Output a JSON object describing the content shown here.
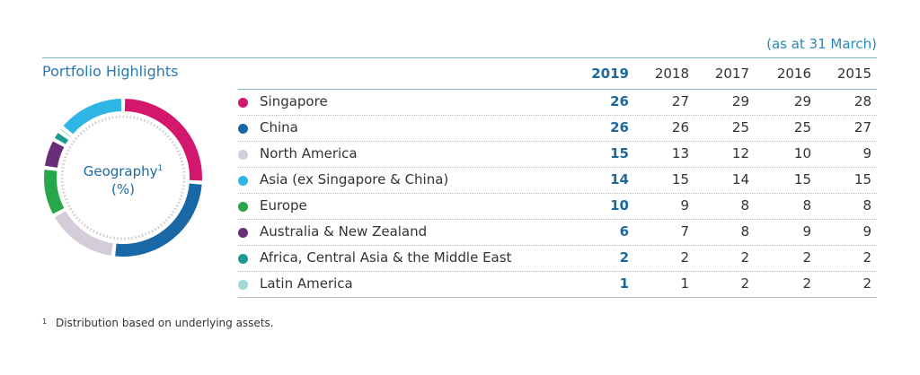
{
  "header": {
    "note": "(as at 31 March)",
    "title": "Portfolio Highlights"
  },
  "donut": {
    "label": "Geography",
    "label_ref": "1",
    "unit": "(%)"
  },
  "table": {
    "columns": [
      "2019",
      "2018",
      "2017",
      "2016",
      "2015"
    ],
    "rows": [
      {
        "name": "Singapore",
        "color": "#d3176d",
        "values": [
          26,
          27,
          29,
          29,
          28
        ]
      },
      {
        "name": "China",
        "color": "#1a67a6",
        "values": [
          26,
          26,
          25,
          25,
          27
        ]
      },
      {
        "name": "North America",
        "color": "#d5ccd9",
        "values": [
          15,
          13,
          12,
          10,
          9
        ]
      },
      {
        "name": "Asia (ex Singapore & China)",
        "color": "#2fb6e6",
        "values": [
          14,
          15,
          14,
          15,
          15
        ]
      },
      {
        "name": "Europe",
        "color": "#27a64a",
        "values": [
          10,
          9,
          8,
          8,
          8
        ]
      },
      {
        "name": "Australia & New Zealand",
        "color": "#6a2d78",
        "values": [
          6,
          7,
          8,
          9,
          9
        ]
      },
      {
        "name": "Africa, Central Asia & the Middle East",
        "color": "#1e9a90",
        "values": [
          2,
          2,
          2,
          2,
          2
        ]
      },
      {
        "name": "Latin America",
        "color": "#a0d8da",
        "values": [
          1,
          1,
          2,
          2,
          2
        ]
      }
    ]
  },
  "footnote": {
    "marker": "1",
    "text": "Distribution based on underlying assets."
  }
}
